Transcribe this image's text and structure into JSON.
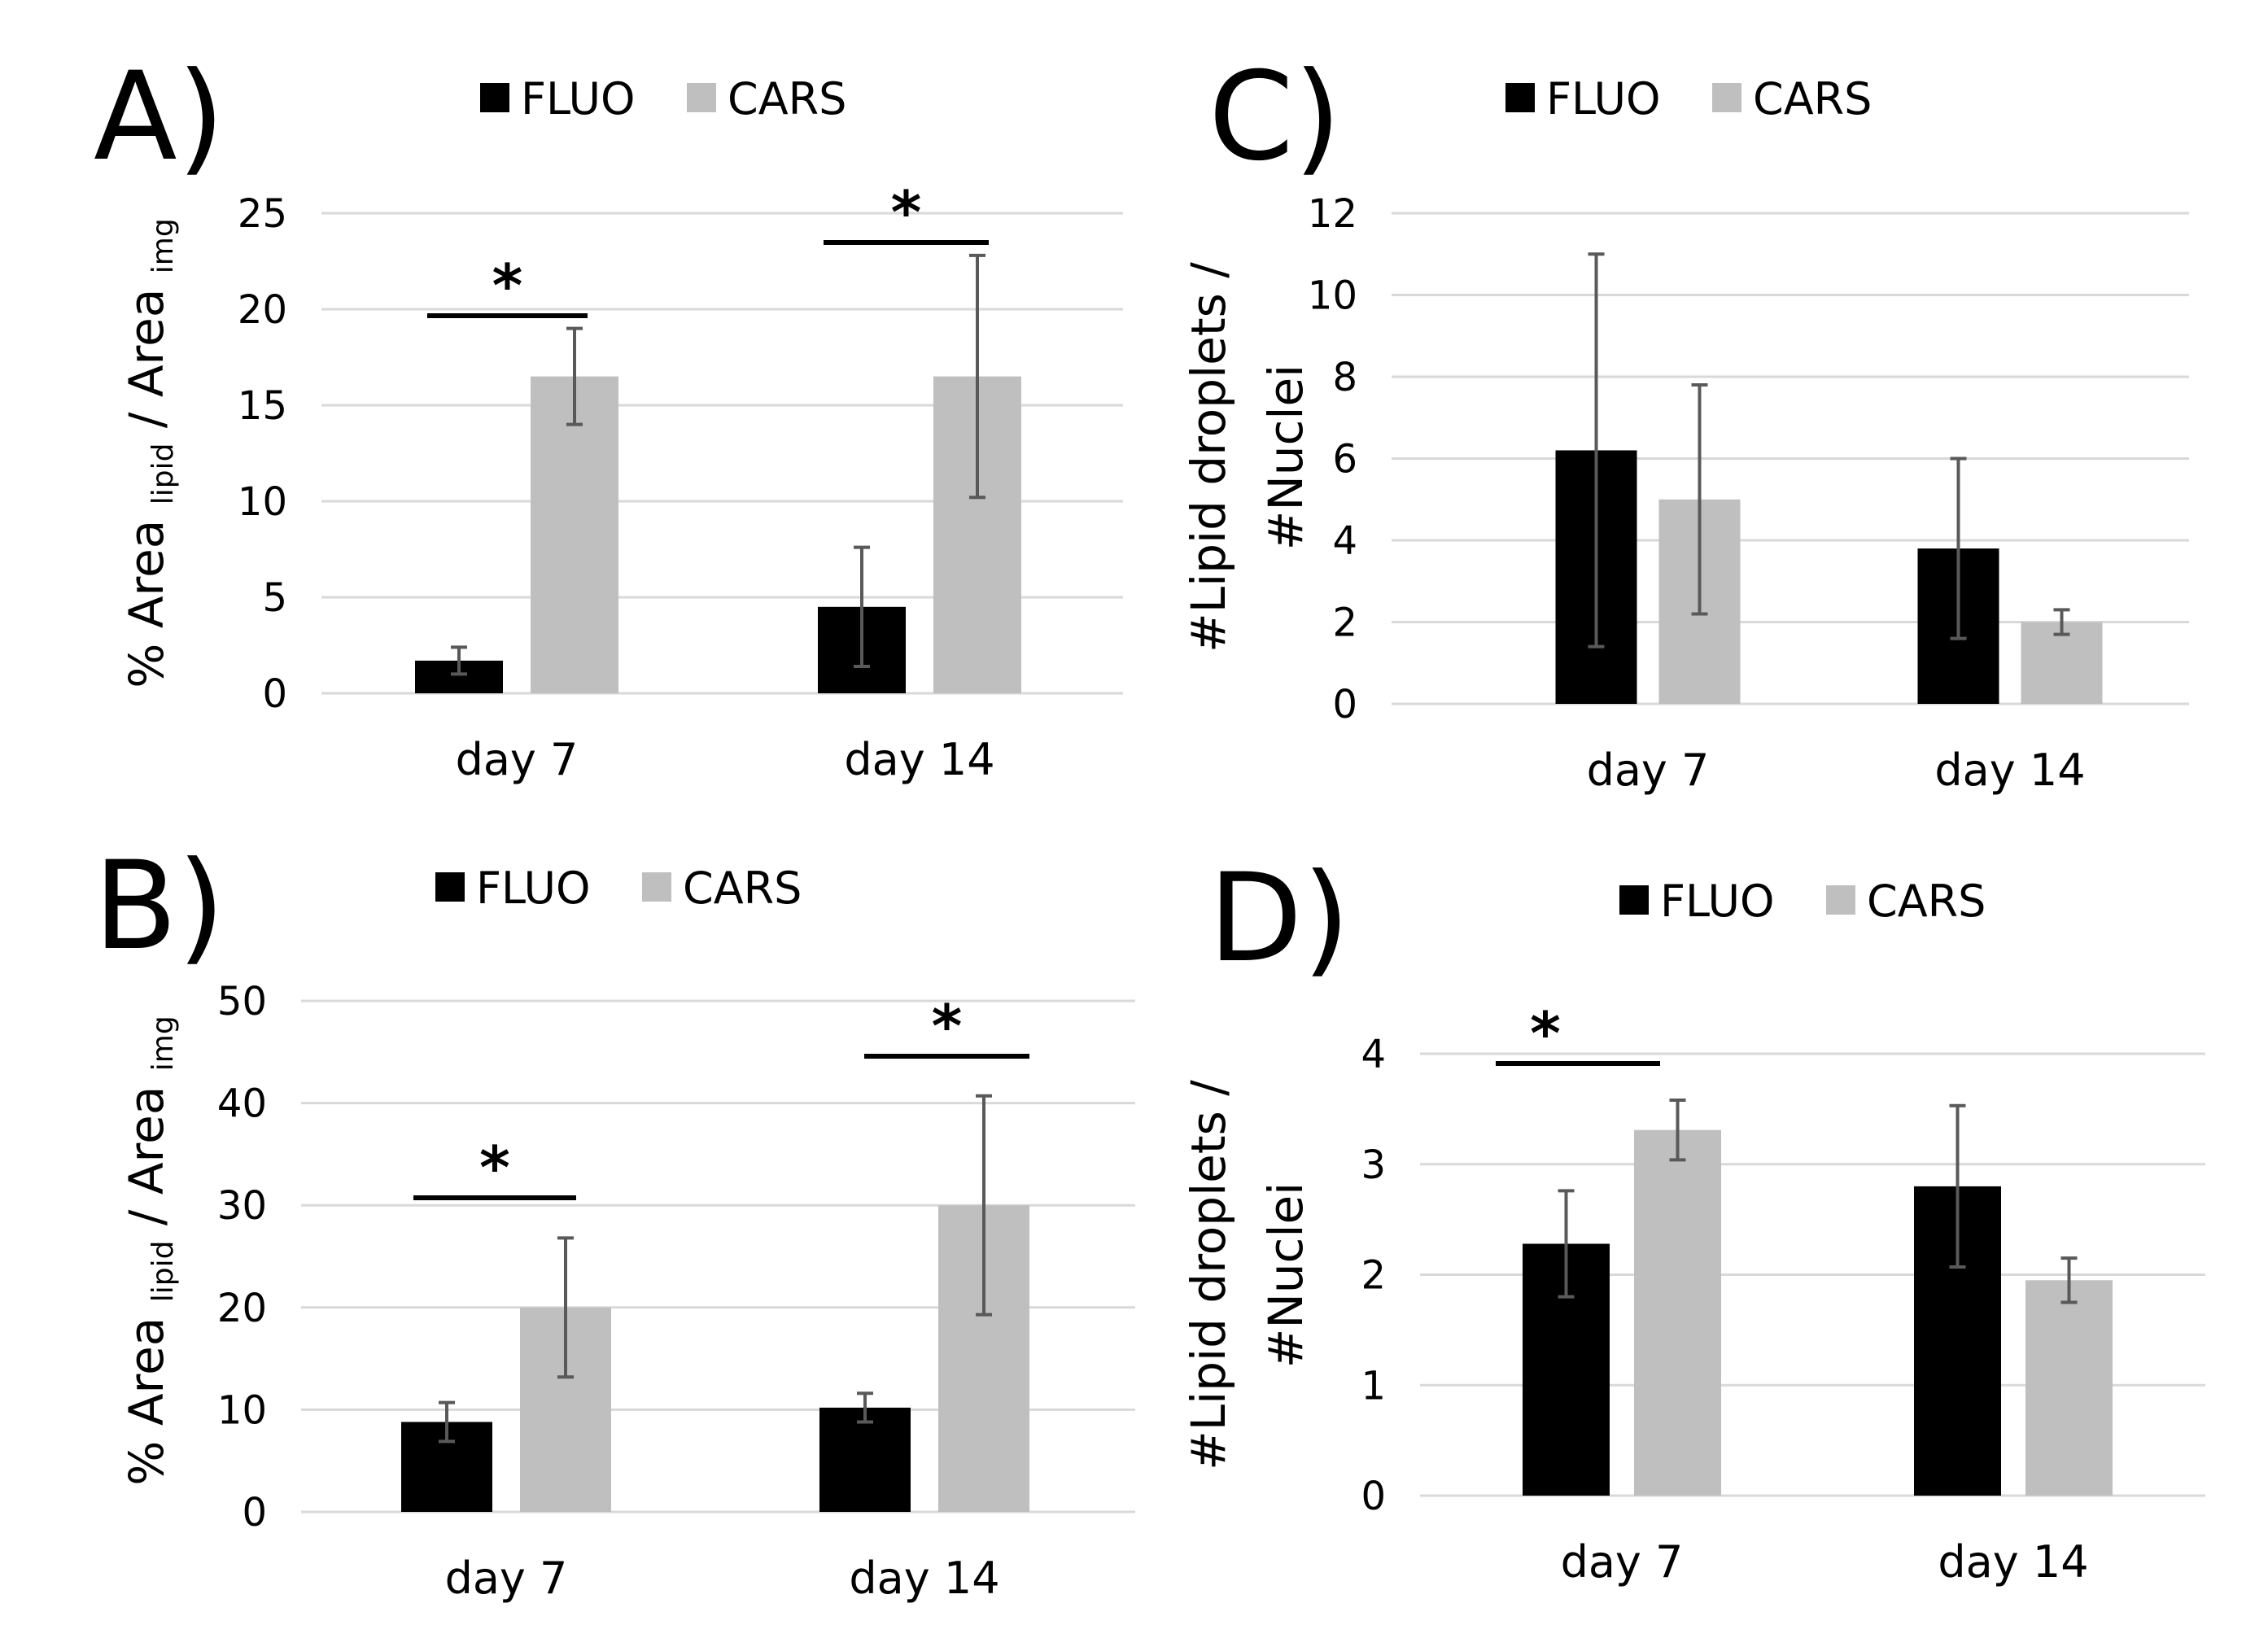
{
  "colors": {
    "fluo": "#000000",
    "cars": "#bfbfbf",
    "grid": "#d9d9d9",
    "error": "#595959"
  },
  "chart_data": [
    {
      "id": "A",
      "type": "bar",
      "panel_label": "A)",
      "categories": [
        "day 7",
        "day 14"
      ],
      "series": [
        {
          "name": "FLUO",
          "values": [
            1.7,
            4.5
          ],
          "errors": [
            0.7,
            3.1
          ]
        },
        {
          "name": "CARS",
          "values": [
            16.5,
            16.5
          ],
          "errors": [
            2.5,
            6.3
          ]
        }
      ],
      "ylim": [
        0,
        25
      ],
      "yticks": [
        "0",
        "5",
        "10",
        "15",
        "20",
        "25"
      ],
      "ylabel": {
        "prefix": "% Area ",
        "sub1": "lipid",
        "mid": " / Area ",
        "sub2": "img"
      },
      "significance": [
        {
          "category": 0,
          "label": "*"
        },
        {
          "category": 1,
          "label": "*"
        }
      ],
      "legend": [
        "FLUO",
        "CARS"
      ]
    },
    {
      "id": "B",
      "type": "bar",
      "panel_label": "B)",
      "categories": [
        "day 7",
        "day 14"
      ],
      "series": [
        {
          "name": "FLUO",
          "values": [
            8.8,
            10.2
          ],
          "errors": [
            1.9,
            1.4
          ]
        },
        {
          "name": "CARS",
          "values": [
            20.0,
            30.0
          ],
          "errors": [
            6.8,
            10.7
          ]
        }
      ],
      "ylim": [
        0,
        50
      ],
      "yticks": [
        "0",
        "10",
        "20",
        "30",
        "40",
        "50"
      ],
      "ylabel": {
        "prefix": "% Area ",
        "sub1": "lipid",
        "mid": " / Area ",
        "sub2": "img"
      },
      "significance": [
        {
          "category": 0,
          "label": "*"
        },
        {
          "category": 1,
          "label": "*"
        }
      ],
      "legend": [
        "FLUO",
        "CARS"
      ]
    },
    {
      "id": "C",
      "type": "bar",
      "panel_label": "C)",
      "categories": [
        "day 7",
        "day 14"
      ],
      "series": [
        {
          "name": "FLUO",
          "values": [
            6.2,
            3.8
          ],
          "errors": [
            4.8,
            2.2
          ]
        },
        {
          "name": "CARS",
          "values": [
            5.0,
            2.0
          ],
          "errors": [
            2.8,
            0.3
          ]
        }
      ],
      "ylim": [
        0,
        12
      ],
      "yticks": [
        "0",
        "2",
        "4",
        "6",
        "8",
        "10",
        "12"
      ],
      "ylabel": {
        "line1": "#Lipid droplets /",
        "line2": "#Nuclei"
      },
      "significance": [],
      "legend": [
        "FLUO",
        "CARS"
      ]
    },
    {
      "id": "D",
      "type": "bar",
      "panel_label": "D)",
      "categories": [
        "day 7",
        "day 14"
      ],
      "series": [
        {
          "name": "FLUO",
          "values": [
            2.28,
            2.8
          ],
          "errors": [
            0.48,
            0.73
          ]
        },
        {
          "name": "CARS",
          "values": [
            3.31,
            1.95
          ],
          "errors": [
            0.27,
            0.2
          ]
        }
      ],
      "ylim": [
        0,
        4
      ],
      "yticks": [
        "0",
        "1",
        "2",
        "3",
        "4"
      ],
      "ylabel": {
        "line1": "#Lipid droplets /",
        "line2": "#Nuclei"
      },
      "significance": [
        {
          "category": 0,
          "label": "*"
        }
      ],
      "legend": [
        "FLUO",
        "CARS"
      ]
    }
  ]
}
